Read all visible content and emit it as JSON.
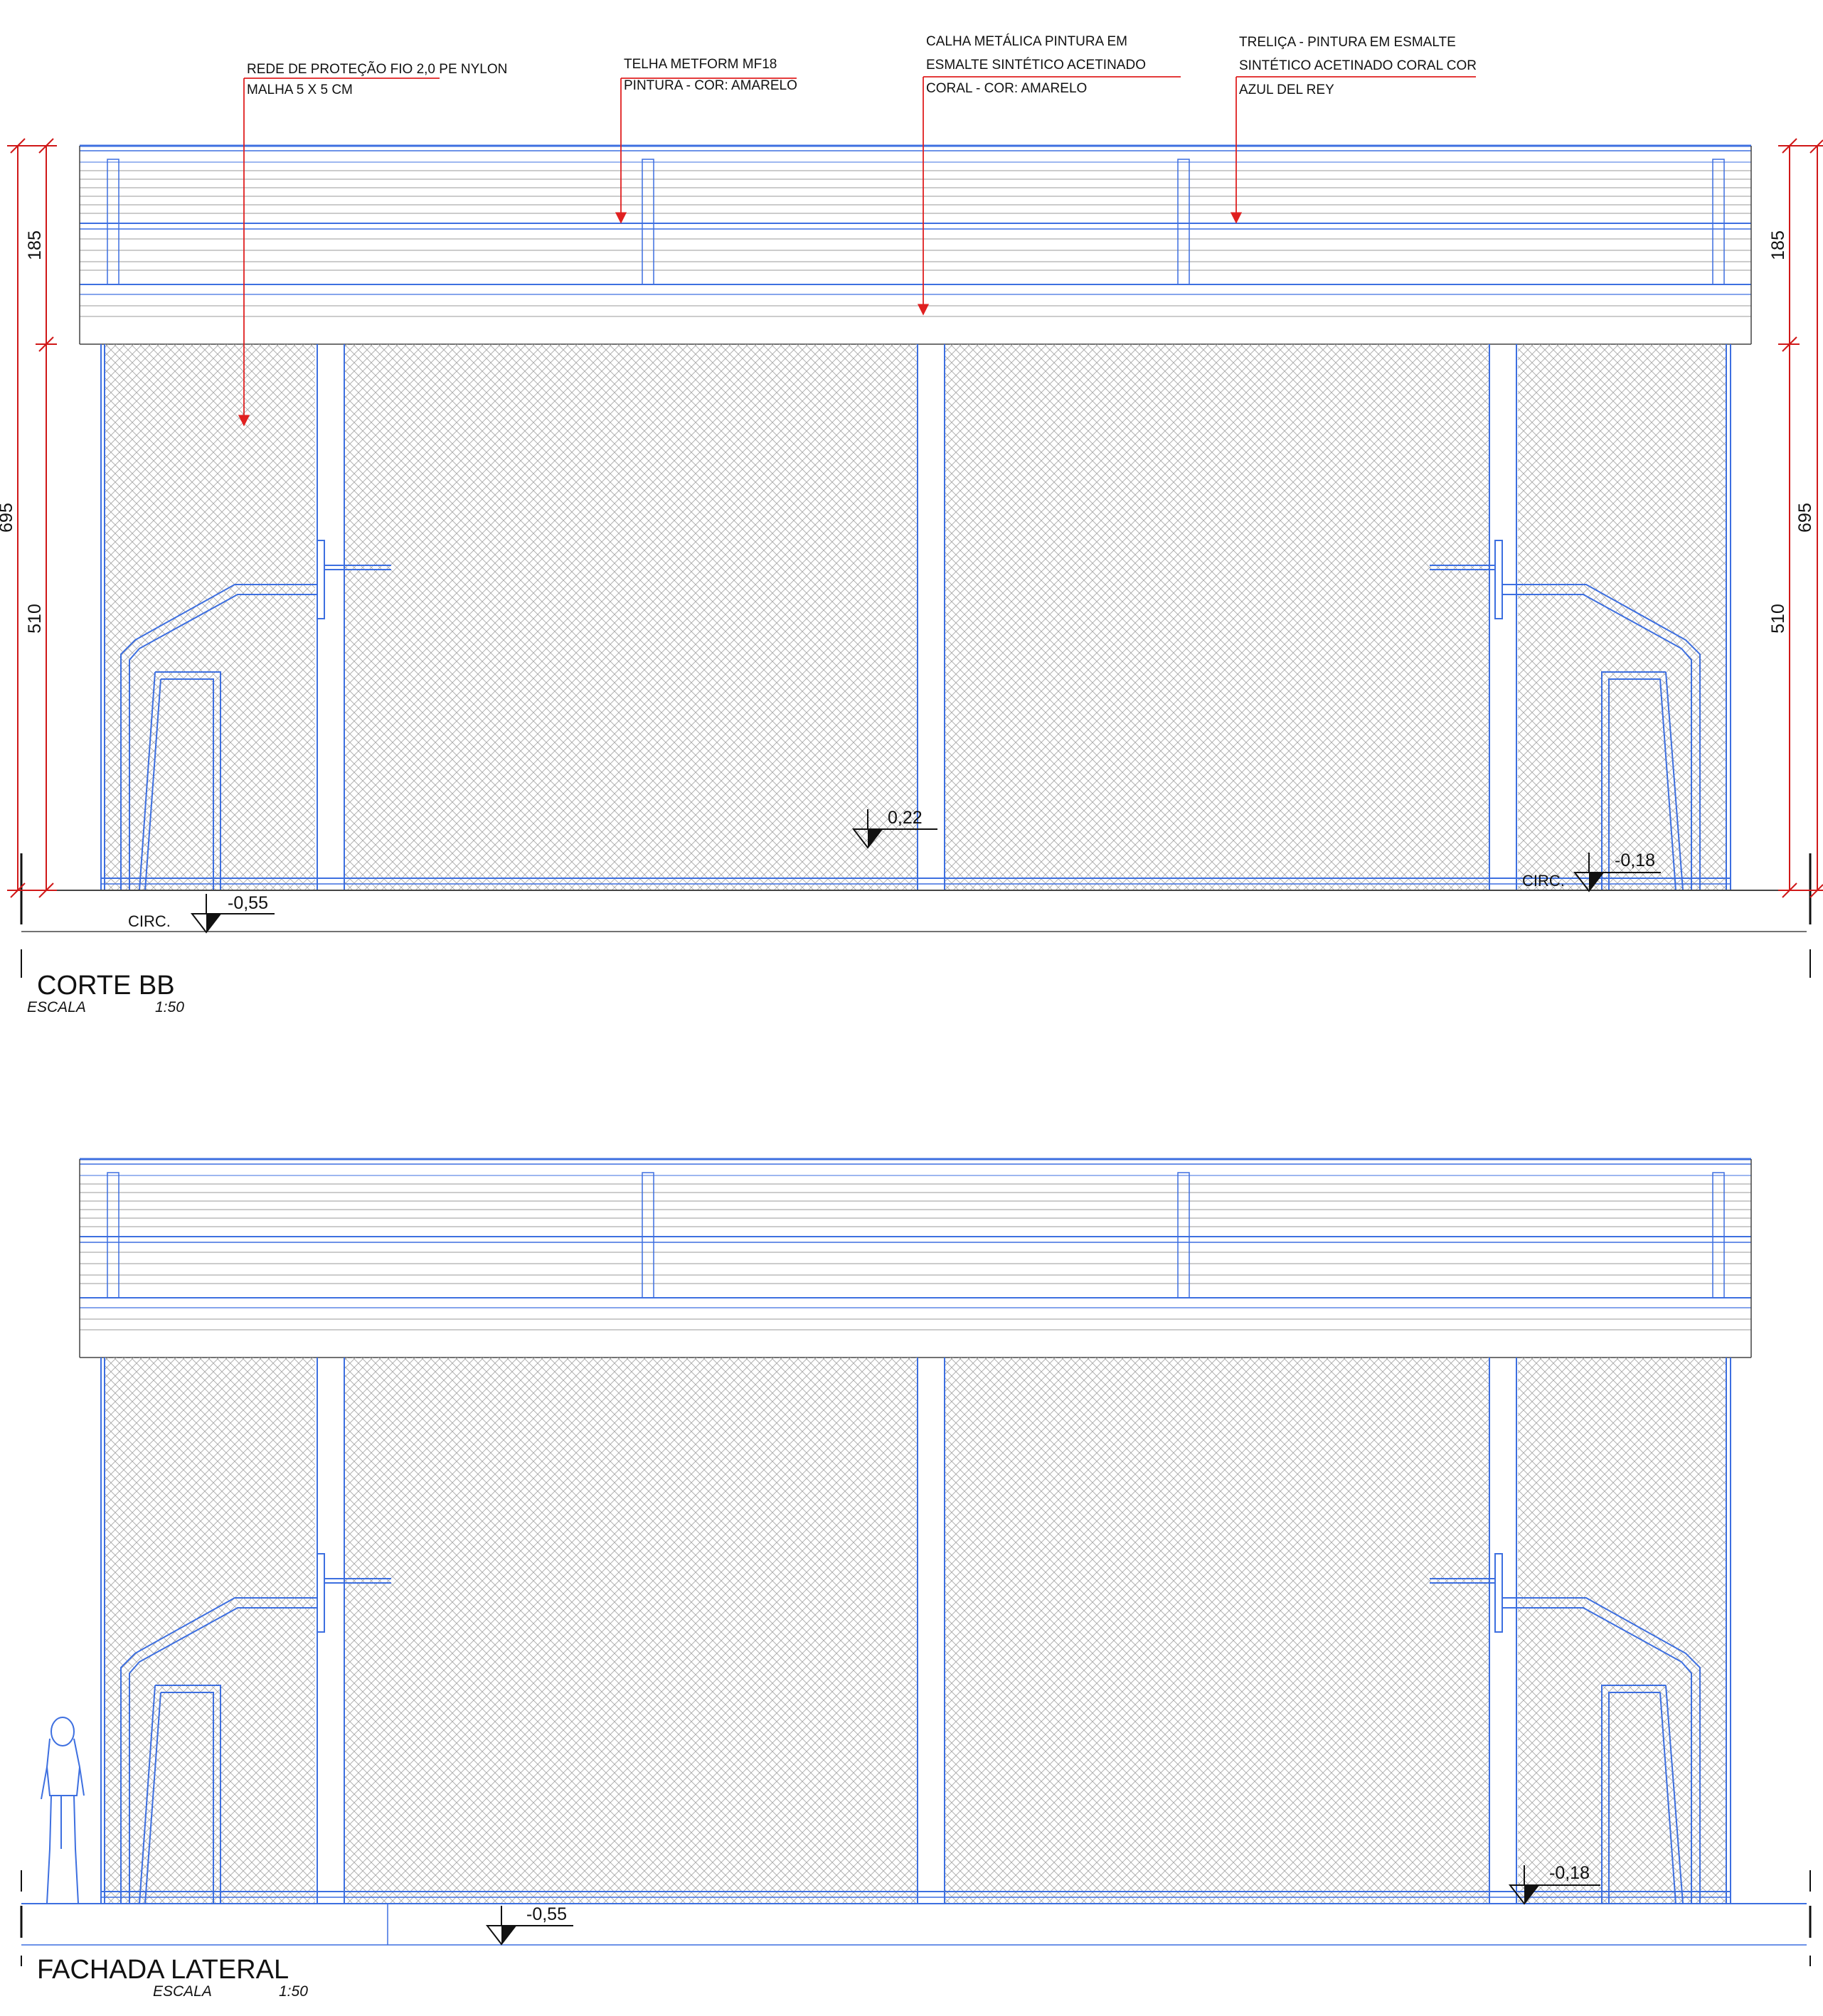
{
  "annotations": {
    "rede_line1": "REDE DE PROTEÇÃO FIO 2,0 PE NYLON",
    "rede_line2": "MALHA 5 X 5 CM",
    "telha_line1": "TELHA METFORM MF18",
    "telha_line2": "PINTURA  - COR: AMARELO",
    "calha_line1": "CALHA METÁLICA PINTURA EM",
    "calha_line2": "ESMALTE SINTÉTICO ACETINADO",
    "calha_line3": "CORAL - COR: AMARELO",
    "trelica_line1": "TRELIÇA - PINTURA EM ESMALTE",
    "trelica_line2": "SINTÉTICO ACETINADO CORAL COR",
    "trelica_line3": "AZUL DEL REY"
  },
  "dimensions": {
    "top_band": "185",
    "net_height": "510",
    "total_height": "695"
  },
  "levels": {
    "center": "0,22",
    "left": "-0,55",
    "right": "-0,18",
    "circ": "CIRC."
  },
  "views": {
    "section": {
      "title": "CORTE BB",
      "scale_label": "ESCALA",
      "scale_value": "1:50"
    },
    "elevation": {
      "title": "FACHADA LATERAL",
      "scale_label": "ESCALA",
      "scale_value": "1:50"
    }
  },
  "colors": {
    "line_blue": "#3d6fe0",
    "annotation_red": "#e02020",
    "dimension_red": "#d01818",
    "net_gray": "#9a9a9a"
  }
}
